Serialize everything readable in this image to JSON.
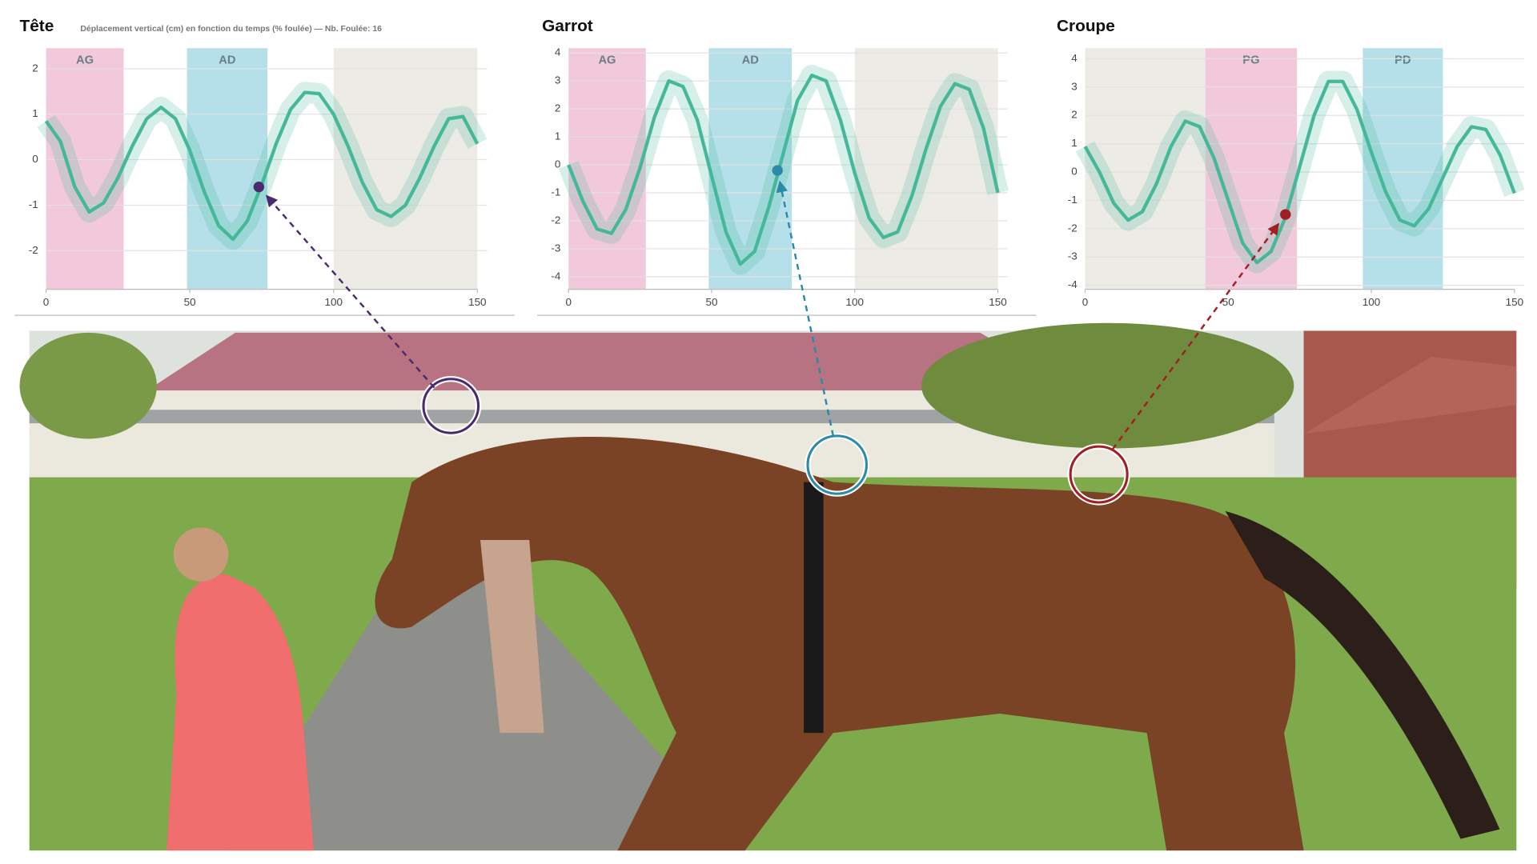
{
  "chart_data": [
    {
      "type": "line",
      "title": "Tête",
      "subtitle": "Déplacement vertical (cm) en fonction du temps (% foulée) — Nb. Foulée: 16",
      "x": [
        0,
        5,
        10,
        15,
        20,
        25,
        30,
        35,
        40,
        45,
        50,
        55,
        60,
        65,
        70,
        75,
        80,
        85,
        90,
        95,
        100,
        105,
        110,
        115,
        120,
        125,
        130,
        135,
        140,
        145,
        150
      ],
      "values": [
        0.85,
        0.4,
        -0.6,
        -1.15,
        -0.95,
        -0.4,
        0.3,
        0.9,
        1.15,
        0.9,
        0.2,
        -0.7,
        -1.45,
        -1.75,
        -1.35,
        -0.55,
        0.35,
        1.1,
        1.48,
        1.45,
        1.0,
        0.3,
        -0.5,
        -1.1,
        -1.25,
        -1.0,
        -0.4,
        0.3,
        0.9,
        0.95,
        0.35
      ],
      "color": "#45b89a",
      "regions": [
        {
          "label": "AG",
          "start": 0,
          "end": 27,
          "color": "#f2c9da"
        },
        {
          "label": "AD",
          "start": 49,
          "end": 77,
          "color": "#b5e0ea"
        },
        {
          "start": 100,
          "end": 150,
          "color": "#ecebe5"
        }
      ],
      "marker": {
        "x": 74,
        "y": -0.6,
        "color": "#4a2a6e"
      },
      "xlim": [
        0,
        150
      ],
      "xticks": [
        0,
        50,
        100,
        150
      ],
      "ylim": [
        -2.85,
        2.45
      ],
      "yticks": [
        2,
        1,
        0,
        -1,
        -2
      ],
      "grid": true
    },
    {
      "type": "line",
      "title": "Garrot",
      "x": [
        0,
        5,
        10,
        15,
        20,
        25,
        30,
        35,
        40,
        45,
        50,
        55,
        60,
        65,
        70,
        75,
        80,
        85,
        90,
        95,
        100,
        105,
        110,
        115,
        120,
        125,
        130,
        135,
        140,
        145,
        150
      ],
      "values": [
        0,
        -1.3,
        -2.3,
        -2.45,
        -1.6,
        -0.1,
        1.7,
        3.0,
        2.8,
        1.6,
        -0.4,
        -2.4,
        -3.55,
        -3.1,
        -1.5,
        0.4,
        2.3,
        3.2,
        3.0,
        1.6,
        -0.3,
        -1.9,
        -2.6,
        -2.4,
        -1.1,
        0.6,
        2.1,
        2.9,
        2.7,
        1.3,
        -1.0
      ],
      "color": "#45b89a",
      "regions": [
        {
          "label": "AG",
          "start": 0,
          "end": 27,
          "color": "#f2c9da"
        },
        {
          "label": "AD",
          "start": 49,
          "end": 78,
          "color": "#b5e0ea"
        },
        {
          "start": 100,
          "end": 150,
          "color": "#ecebe5"
        }
      ],
      "marker": {
        "x": 73,
        "y": -0.2,
        "color": "#2a8aa8"
      },
      "xlim": [
        0,
        150
      ],
      "xticks": [
        0,
        50,
        100,
        150
      ],
      "ylim": [
        -4.45,
        4.17
      ],
      "yticks": [
        4,
        3,
        2,
        1,
        0,
        -1,
        -2,
        -3,
        -4
      ],
      "grid": true
    },
    {
      "type": "line",
      "title": "Croupe",
      "x": [
        0,
        5,
        10,
        15,
        20,
        25,
        30,
        35,
        40,
        45,
        50,
        55,
        60,
        65,
        70,
        75,
        80,
        85,
        90,
        95,
        100,
        105,
        110,
        115,
        120,
        125,
        130,
        135,
        140,
        145,
        150
      ],
      "values": [
        0.9,
        0.0,
        -1.1,
        -1.7,
        -1.4,
        -0.4,
        0.9,
        1.8,
        1.6,
        0.5,
        -1.0,
        -2.5,
        -3.2,
        -2.8,
        -1.6,
        0.2,
        2.0,
        3.2,
        3.2,
        2.2,
        0.7,
        -0.7,
        -1.7,
        -1.9,
        -1.3,
        -0.2,
        0.9,
        1.6,
        1.5,
        0.6,
        -0.75
      ],
      "color": "#45b89a",
      "regions": [
        {
          "start": 0,
          "end": 42,
          "color": "#ecebe5"
        },
        {
          "label": "PG",
          "start": 42,
          "end": 74,
          "color": "#f2c9da"
        },
        {
          "label": "PD",
          "start": 97,
          "end": 125,
          "color": "#b5e0ea"
        }
      ],
      "marker": {
        "x": 70,
        "y": -1.5,
        "color": "#a01e24"
      },
      "xlim": [
        0,
        150
      ],
      "xticks": [
        0,
        50,
        100,
        150
      ],
      "ylim": [
        -4.14,
        4.37
      ],
      "yticks": [
        4,
        3,
        2,
        1,
        0,
        -1,
        -2,
        -3,
        -4
      ],
      "grid": true
    }
  ]
}
